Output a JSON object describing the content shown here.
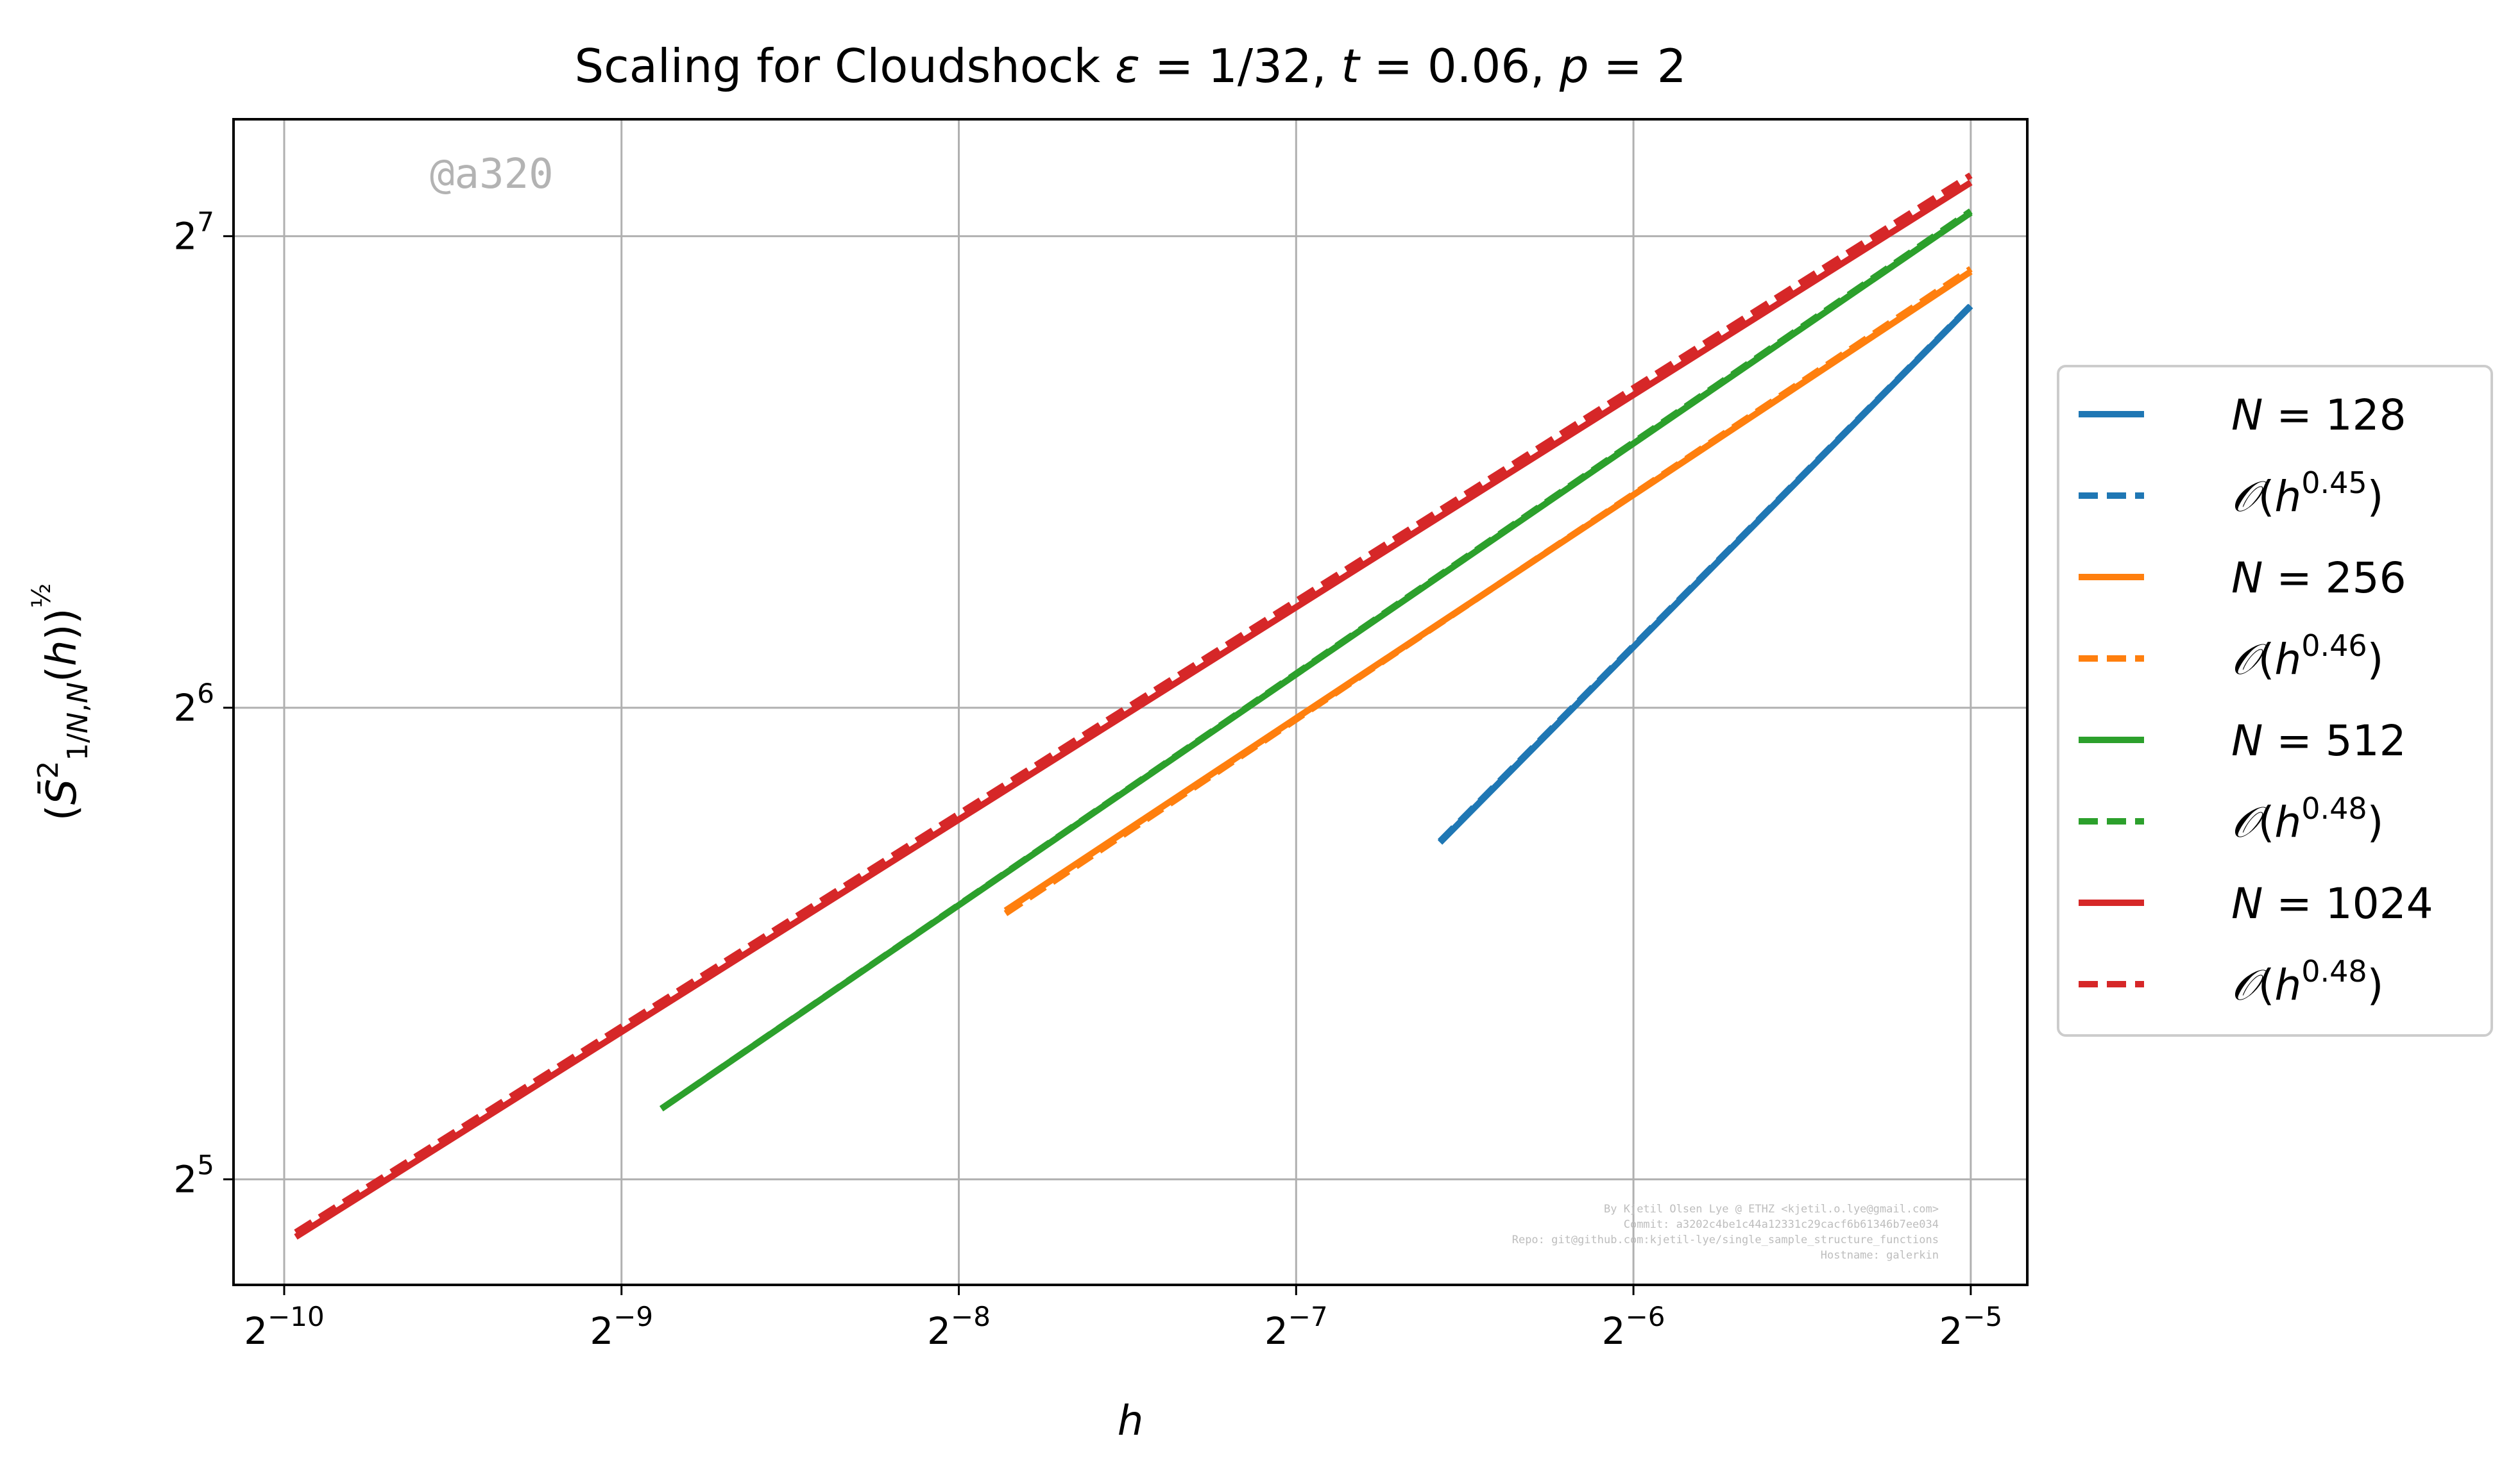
{
  "chart_data": {
    "type": "line",
    "title": "Scaling for Cloudshock ε = 1/32, t = 0.06, p = 2",
    "xlabel": "h",
    "ylabel": "(S̄²₁/N,N(h))^½",
    "xscale": "log2",
    "yscale": "log2",
    "xlim": [
      0.00088,
      0.0351
    ],
    "ylim": [
      27.4,
      152
    ],
    "x_ticks": [
      {
        "value": 0.0009765625,
        "base": "2",
        "exp": "−10"
      },
      {
        "value": 0.001953125,
        "base": "2",
        "exp": "−9"
      },
      {
        "value": 0.00390625,
        "base": "2",
        "exp": "−8"
      },
      {
        "value": 0.0078125,
        "base": "2",
        "exp": "−7"
      },
      {
        "value": 0.015625,
        "base": "2",
        "exp": "−6"
      },
      {
        "value": 0.03125,
        "base": "2",
        "exp": "−5"
      }
    ],
    "y_ticks": [
      {
        "value": 32,
        "base": "2",
        "exp": "5"
      },
      {
        "value": 64,
        "base": "2",
        "exp": "6"
      },
      {
        "value": 128,
        "base": "2",
        "exp": "7"
      }
    ],
    "grid": true,
    "legend_position": "right-outside",
    "series": [
      {
        "name": "N = 128",
        "color": "#1f77b4",
        "style": "solid",
        "x": [
          0.0105,
          0.03125
        ],
        "y": [
          52.5,
          115.5
        ]
      },
      {
        "name": "O(h^0.45)",
        "color": "#1f77b4",
        "style": "dashed",
        "x": [
          0.0105,
          0.03125
        ],
        "y": [
          52.6,
          115.6
        ]
      },
      {
        "name": "N = 256",
        "color": "#ff7f0e",
        "style": "solid",
        "x": [
          0.0043,
          0.03125
        ],
        "y": [
          47.5,
          121.5
        ]
      },
      {
        "name": "O(h^0.46)",
        "color": "#ff7f0e",
        "style": "dashed",
        "x": [
          0.0043,
          0.03125
        ],
        "y": [
          47.3,
          122.0
        ]
      },
      {
        "name": "N = 512",
        "color": "#2ca02c",
        "style": "solid",
        "x": [
          0.00212,
          0.03125
        ],
        "y": [
          35.5,
          132.5
        ]
      },
      {
        "name": "O(h^0.48)",
        "color": "#2ca02c",
        "style": "dashed",
        "x": [
          0.00212,
          0.03125
        ],
        "y": [
          35.5,
          132.8
        ]
      },
      {
        "name": "N = 1024",
        "color": "#d62728",
        "style": "solid",
        "x": [
          0.001,
          0.03125
        ],
        "y": [
          29.4,
          138.5
        ]
      },
      {
        "name": "O(h^0.48)",
        "color": "#d62728",
        "style": "dashed",
        "x": [
          0.001,
          0.03125
        ],
        "y": [
          29.6,
          140.0
        ]
      }
    ]
  },
  "watermark": "@a320",
  "footer": {
    "line1": "By Kjetil Olsen Lye @ ETHZ <kjetil.o.lye@gmail.com>",
    "line2": "Commit: a3202c4be1c44a12331c29cacf6b61346b7ee034",
    "line3": "Repo: git@github.com:kjetil-lye/single_sample_structure_functions",
    "line4": "Hostname: galerkin"
  }
}
